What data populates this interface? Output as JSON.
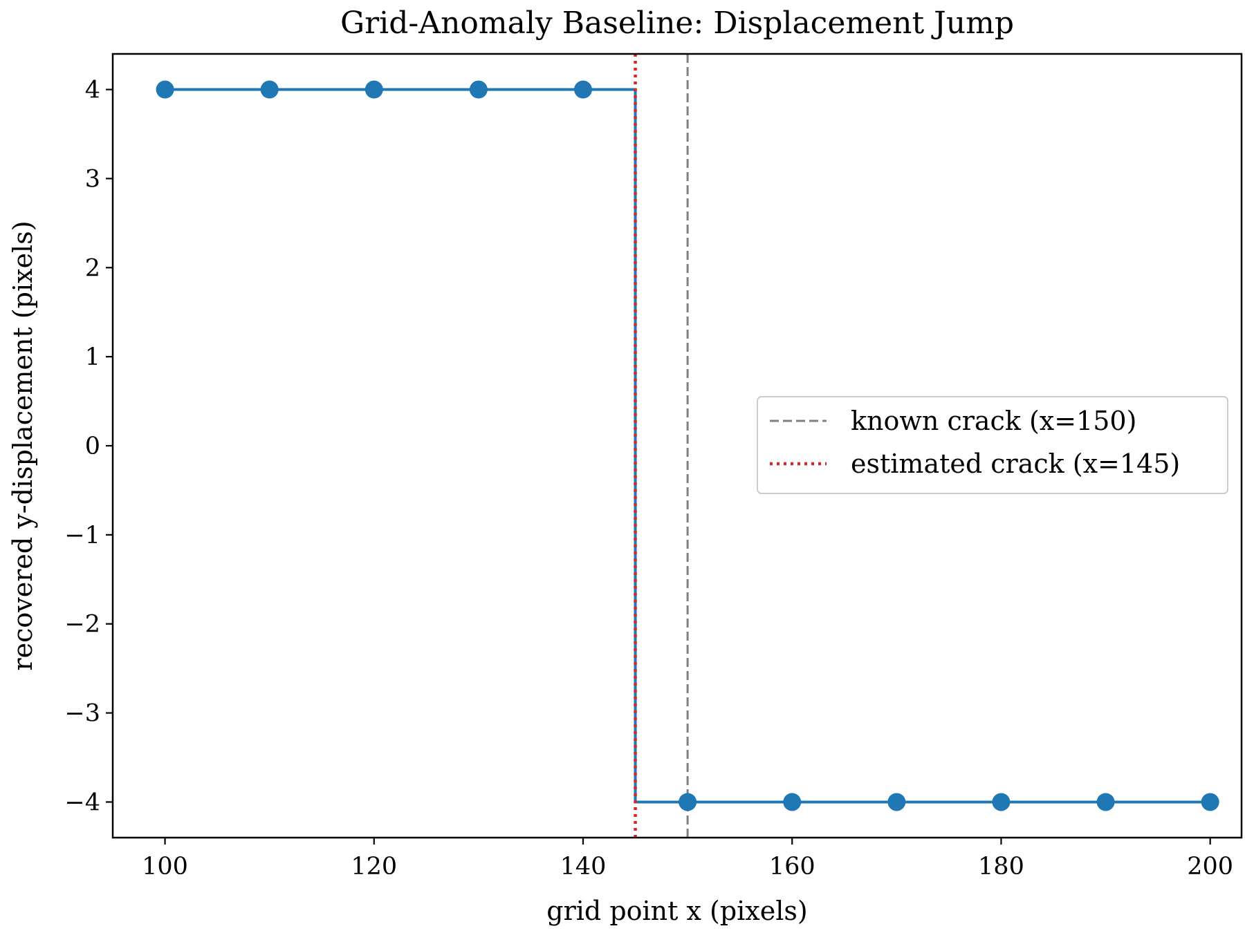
{
  "colors": {
    "series": "#1f77b4",
    "known_crack": "#7f7f7f",
    "estimated_crack": "#d62728",
    "axes": "#000000",
    "legend_border": "#cccccc"
  },
  "chart_data": {
    "type": "line",
    "title": "Grid-Anomaly Baseline: Displacement Jump",
    "xlabel": "grid point x (pixels)",
    "ylabel": "recovered y-displacement (pixels)",
    "xlim": [
      95,
      203
    ],
    "ylim": [
      -4.4,
      4.4
    ],
    "xticks": [
      100,
      120,
      140,
      160,
      180,
      200
    ],
    "xtick_labels": [
      "100",
      "120",
      "140",
      "160",
      "180",
      "200"
    ],
    "yticks": [
      -4,
      -3,
      -2,
      -1,
      0,
      1,
      2,
      3,
      4
    ],
    "ytick_labels": [
      "−4",
      "−3",
      "−2",
      "−1",
      "0",
      "1",
      "2",
      "3",
      "4"
    ],
    "grid": false,
    "legend_position": "center-right",
    "series": [
      {
        "x": [
          100,
          110,
          120,
          130,
          140,
          150,
          160,
          170,
          180,
          190,
          200
        ],
        "y": [
          4,
          4,
          4,
          4,
          4,
          -4,
          -4,
          -4,
          -4,
          -4,
          -4
        ],
        "step_at": 145,
        "markers": "circle"
      }
    ],
    "vlines": [
      {
        "x": 150,
        "style": "dashed",
        "label": "known crack (x=150)",
        "color_key": "known_crack"
      },
      {
        "x": 145,
        "style": "dotted",
        "label": "estimated crack (x=145)",
        "color_key": "estimated_crack"
      }
    ]
  }
}
